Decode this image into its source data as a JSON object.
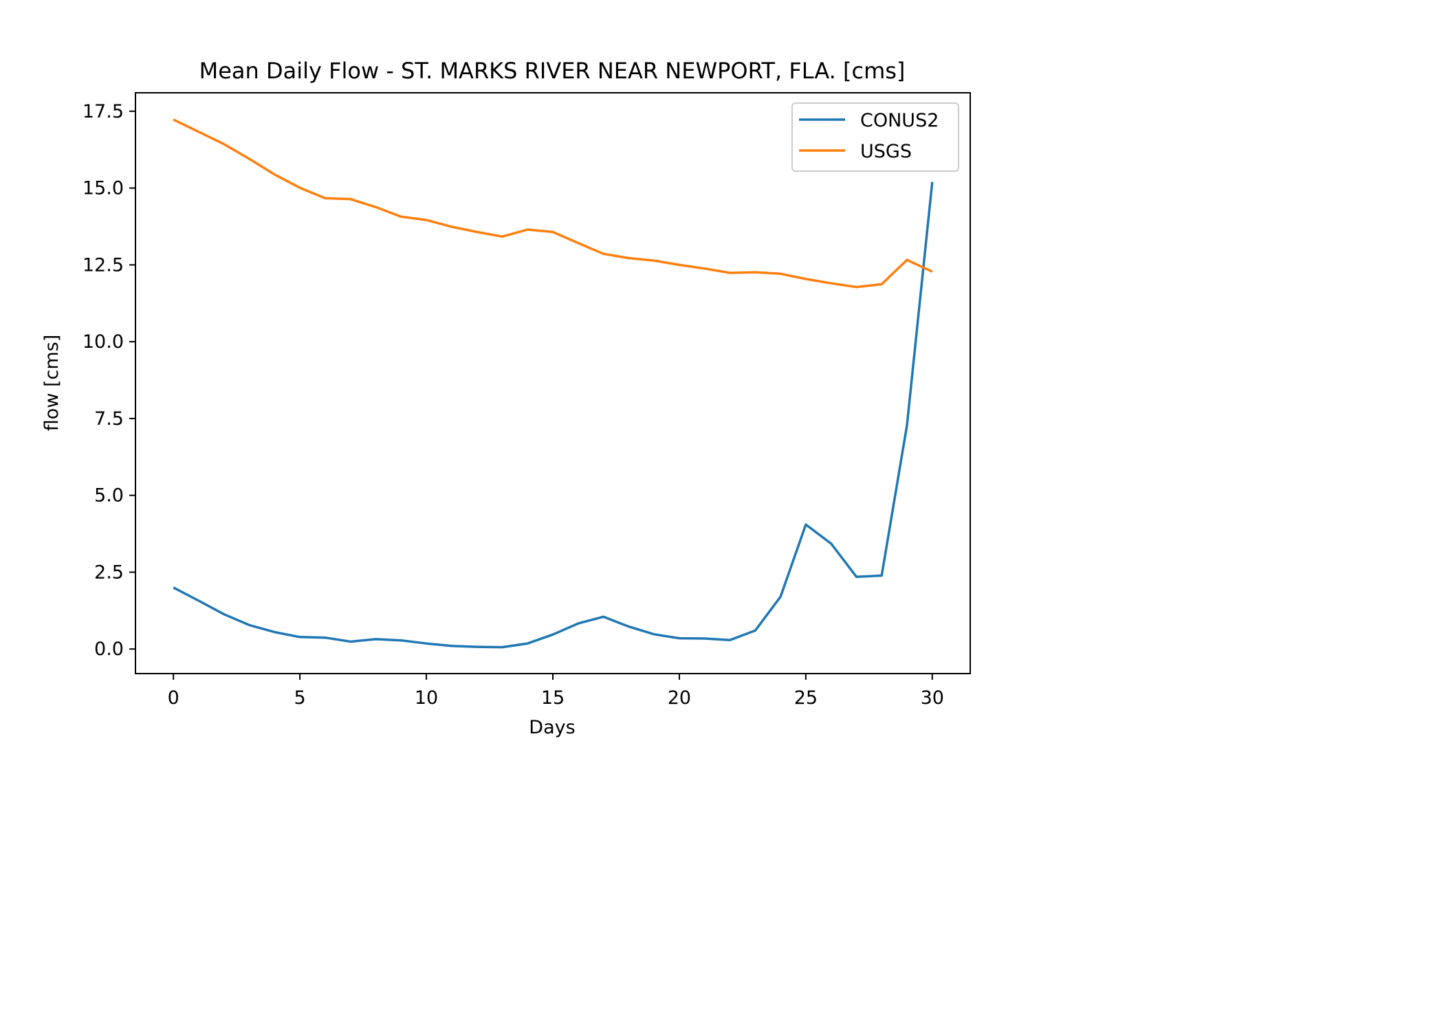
{
  "chart_data": {
    "type": "line",
    "title": "Mean Daily Flow - ST. MARKS RIVER NEAR NEWPORT, FLA. [cms]",
    "xlabel": "Days",
    "ylabel": "flow [cms]",
    "xlim": [
      -1.5,
      31.5
    ],
    "ylim": [
      -0.8,
      18.1
    ],
    "xticks": [
      0,
      5,
      10,
      15,
      20,
      25,
      30
    ],
    "xtick_labels": [
      "0",
      "5",
      "10",
      "15",
      "20",
      "25",
      "30"
    ],
    "yticks": [
      0.0,
      2.5,
      5.0,
      7.5,
      10.0,
      12.5,
      15.0,
      17.5
    ],
    "ytick_labels": [
      "0.0",
      "2.5",
      "5.0",
      "7.5",
      "10.0",
      "12.5",
      "15.0",
      "17.5"
    ],
    "grid": false,
    "legend_position": "top-right",
    "x": [
      0,
      1,
      2,
      3,
      4,
      5,
      6,
      7,
      8,
      9,
      10,
      11,
      12,
      13,
      14,
      15,
      16,
      17,
      18,
      19,
      20,
      21,
      22,
      23,
      24,
      25,
      26,
      27,
      28,
      29,
      30
    ],
    "series": [
      {
        "name": "CONUS2",
        "color": "#1f77b4",
        "values": [
          2.0,
          1.57,
          1.13,
          0.78,
          0.55,
          0.39,
          0.37,
          0.24,
          0.32,
          0.28,
          0.18,
          0.1,
          0.07,
          0.06,
          0.18,
          0.47,
          0.83,
          1.05,
          0.73,
          0.48,
          0.35,
          0.34,
          0.29,
          0.6,
          1.7,
          4.05,
          3.43,
          2.35,
          2.39,
          7.28,
          15.2
        ]
      },
      {
        "name": "USGS",
        "color": "#ff7f0e",
        "values": [
          17.23,
          16.83,
          16.43,
          15.95,
          15.44,
          15.01,
          14.67,
          14.64,
          14.38,
          14.07,
          13.96,
          13.74,
          13.57,
          13.42,
          13.65,
          13.57,
          13.21,
          12.86,
          12.72,
          12.64,
          12.5,
          12.38,
          12.24,
          12.26,
          12.21,
          12.04,
          11.9,
          11.78,
          11.87,
          12.66,
          12.28
        ]
      }
    ]
  }
}
